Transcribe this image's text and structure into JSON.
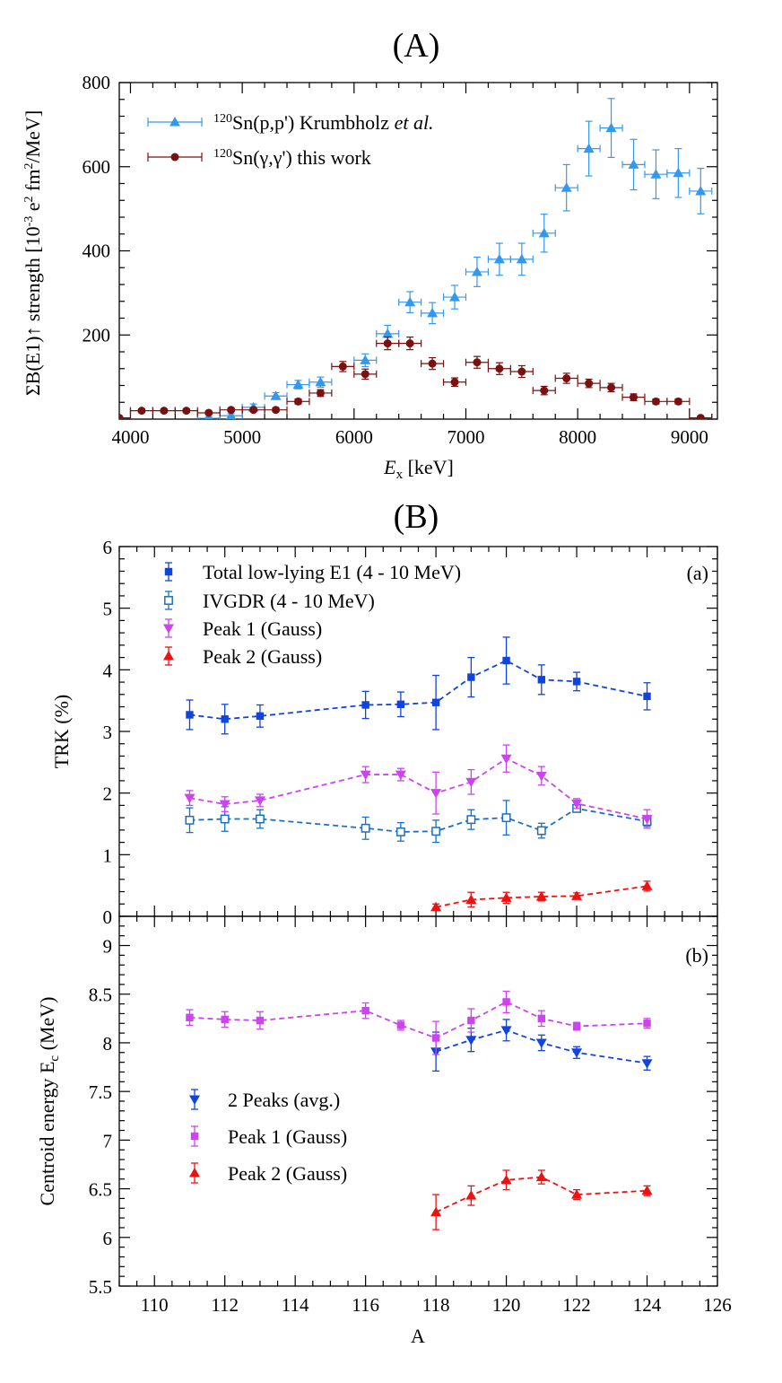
{
  "colors": {
    "light_blue": "#3399ee",
    "dark_red": "#7a1010",
    "blue": "#1144dd",
    "ivgdr_blue": "#1a6fc4",
    "magenta": "#cc44ee",
    "red": "#ee1111"
  },
  "chart_data": [
    {
      "id": "A",
      "type": "scatter",
      "panel_title": "(A)",
      "xlabel_italic": "E",
      "xlabel_sub": "x",
      "xlabel_unit": "[keV]",
      "ylabel_prefix": "ΣB(E1)↑ strength [10",
      "ylabel_exp1": "-3",
      "ylabel_mid": " e",
      "ylabel_exp2": "2",
      "ylabel_mid2": " fm",
      "ylabel_exp3": "2",
      "ylabel_suffix": "/MeV]",
      "xlim": [
        3900,
        9250
      ],
      "ylim": [
        0,
        800
      ],
      "xticks": [
        "4000",
        "5000",
        "6000",
        "7000",
        "8000",
        "9000"
      ],
      "yticks": [
        "200",
        "400",
        "600",
        "800"
      ],
      "legend_placement": "top-left",
      "series": [
        {
          "legend_sup": "120",
          "legend_text": "Sn(p,p') Krumbholz ",
          "legend_italic": "et al.",
          "marker": "triangle-up",
          "color_key": "light_blue",
          "points": [
            {
              "x": 4700,
              "y": 2,
              "ey": 3
            },
            {
              "x": 4900,
              "y": 8,
              "ey": 5
            },
            {
              "x": 5100,
              "y": 28,
              "ey": 8
            },
            {
              "x": 5300,
              "y": 55,
              "ey": 8
            },
            {
              "x": 5500,
              "y": 82,
              "ey": 10
            },
            {
              "x": 5700,
              "y": 88,
              "ey": 12
            },
            {
              "x": 6100,
              "y": 140,
              "ey": 15
            },
            {
              "x": 6300,
              "y": 203,
              "ey": 20
            },
            {
              "x": 6500,
              "y": 278,
              "ey": 25
            },
            {
              "x": 6700,
              "y": 252,
              "ey": 25
            },
            {
              "x": 6900,
              "y": 290,
              "ey": 28
            },
            {
              "x": 7100,
              "y": 350,
              "ey": 35
            },
            {
              "x": 7300,
              "y": 380,
              "ey": 38
            },
            {
              "x": 7500,
              "y": 380,
              "ey": 38
            },
            {
              "x": 7700,
              "y": 442,
              "ey": 45
            },
            {
              "x": 7900,
              "y": 550,
              "ey": 55
            },
            {
              "x": 8100,
              "y": 643,
              "ey": 65
            },
            {
              "x": 8300,
              "y": 692,
              "ey": 70
            },
            {
              "x": 8500,
              "y": 605,
              "ey": 60
            },
            {
              "x": 8700,
              "y": 582,
              "ey": 58
            },
            {
              "x": 8900,
              "y": 585,
              "ey": 58
            },
            {
              "x": 9100,
              "y": 542,
              "ey": 54
            }
          ]
        },
        {
          "legend_sup": "120",
          "legend_text": "Sn(γ,γ') this work",
          "legend_italic": "",
          "marker": "circle",
          "color_key": "dark_red",
          "points": [
            {
              "x": 3900,
              "y": 3,
              "ey": 3
            },
            {
              "x": 4100,
              "y": 20,
              "ey": 4
            },
            {
              "x": 4300,
              "y": 20,
              "ey": 4
            },
            {
              "x": 4500,
              "y": 20,
              "ey": 4
            },
            {
              "x": 4700,
              "y": 15,
              "ey": 4
            },
            {
              "x": 4900,
              "y": 22,
              "ey": 4
            },
            {
              "x": 5100,
              "y": 22,
              "ey": 4
            },
            {
              "x": 5300,
              "y": 22,
              "ey": 4
            },
            {
              "x": 5500,
              "y": 42,
              "ey": 6
            },
            {
              "x": 5700,
              "y": 62,
              "ey": 8
            },
            {
              "x": 5900,
              "y": 125,
              "ey": 12
            },
            {
              "x": 6100,
              "y": 107,
              "ey": 12
            },
            {
              "x": 6300,
              "y": 180,
              "ey": 15
            },
            {
              "x": 6500,
              "y": 180,
              "ey": 15
            },
            {
              "x": 6700,
              "y": 132,
              "ey": 14
            },
            {
              "x": 6900,
              "y": 88,
              "ey": 10
            },
            {
              "x": 7100,
              "y": 135,
              "ey": 14
            },
            {
              "x": 7300,
              "y": 120,
              "ey": 14
            },
            {
              "x": 7500,
              "y": 113,
              "ey": 14
            },
            {
              "x": 7700,
              "y": 68,
              "ey": 10
            },
            {
              "x": 7900,
              "y": 97,
              "ey": 12
            },
            {
              "x": 8100,
              "y": 85,
              "ey": 10
            },
            {
              "x": 8300,
              "y": 75,
              "ey": 10
            },
            {
              "x": 8500,
              "y": 52,
              "ey": 8
            },
            {
              "x": 8700,
              "y": 42,
              "ey": 6
            },
            {
              "x": 8900,
              "y": 42,
              "ey": 6
            },
            {
              "x": 9100,
              "y": 3,
              "ey": 3
            }
          ]
        }
      ]
    },
    {
      "id": "Ba",
      "type": "scatter",
      "panel_title": "(B)",
      "panel_label": "(a)",
      "ylabel": "TRK (%)",
      "xlim": [
        109,
        126
      ],
      "ylim": [
        0,
        6
      ],
      "yticks": [
        "0",
        "1",
        "2",
        "3",
        "4",
        "5",
        "6"
      ],
      "legend_placement": "top-left",
      "series": [
        {
          "name": "Total low-lying E1 (4 - 10 MeV)",
          "marker": "square-filled",
          "color_key": "blue",
          "dashed": true,
          "points": [
            {
              "x": 111,
              "y": 3.27,
              "ey": 0.24
            },
            {
              "x": 112,
              "y": 3.2,
              "ey": 0.24
            },
            {
              "x": 113,
              "y": 3.25,
              "ey": 0.18
            },
            {
              "x": 116,
              "y": 3.43,
              "ey": 0.22
            },
            {
              "x": 117,
              "y": 3.44,
              "ey": 0.2
            },
            {
              "x": 118,
              "y": 3.47,
              "ey": 0.44
            },
            {
              "x": 119,
              "y": 3.88,
              "ey": 0.32
            },
            {
              "x": 120,
              "y": 4.15,
              "ey": 0.38
            },
            {
              "x": 121,
              "y": 3.84,
              "ey": 0.24
            },
            {
              "x": 122,
              "y": 3.81,
              "ey": 0.15
            },
            {
              "x": 124,
              "y": 3.57,
              "ey": 0.22
            }
          ]
        },
        {
          "name": "IVGDR (4 - 10 MeV)",
          "marker": "square-open",
          "color_key": "ivgdr_blue",
          "dashed": true,
          "points": [
            {
              "x": 111,
              "y": 1.56,
              "ey": 0.2
            },
            {
              "x": 112,
              "y": 1.58,
              "ey": 0.2
            },
            {
              "x": 113,
              "y": 1.58,
              "ey": 0.15
            },
            {
              "x": 116,
              "y": 1.43,
              "ey": 0.18
            },
            {
              "x": 117,
              "y": 1.37,
              "ey": 0.15
            },
            {
              "x": 118,
              "y": 1.38,
              "ey": 0.18
            },
            {
              "x": 119,
              "y": 1.57,
              "ey": 0.16
            },
            {
              "x": 120,
              "y": 1.6,
              "ey": 0.28
            },
            {
              "x": 121,
              "y": 1.39,
              "ey": 0.12
            },
            {
              "x": 122,
              "y": 1.75,
              "ey": 0.05
            },
            {
              "x": 124,
              "y": 1.54,
              "ey": 0.08
            }
          ]
        },
        {
          "name": "Peak 1 (Gauss)",
          "marker": "triangle-down",
          "color_key": "magenta",
          "dashed": true,
          "points": [
            {
              "x": 111,
              "y": 1.92,
              "ey": 0.12
            },
            {
              "x": 112,
              "y": 1.82,
              "ey": 0.12
            },
            {
              "x": 113,
              "y": 1.88,
              "ey": 0.1
            },
            {
              "x": 116,
              "y": 2.3,
              "ey": 0.13
            },
            {
              "x": 117,
              "y": 2.3,
              "ey": 0.1
            },
            {
              "x": 118,
              "y": 2.0,
              "ey": 0.34
            },
            {
              "x": 119,
              "y": 2.18,
              "ey": 0.2
            },
            {
              "x": 120,
              "y": 2.56,
              "ey": 0.22
            },
            {
              "x": 121,
              "y": 2.28,
              "ey": 0.15
            },
            {
              "x": 122,
              "y": 1.83,
              "ey": 0.08
            },
            {
              "x": 124,
              "y": 1.58,
              "ey": 0.15
            }
          ]
        },
        {
          "name": "Peak 2 (Gauss)",
          "marker": "triangle-up",
          "color_key": "red",
          "dashed": true,
          "points": [
            {
              "x": 118,
              "y": 0.15,
              "ey": 0.05
            },
            {
              "x": 119,
              "y": 0.27,
              "ey": 0.12
            },
            {
              "x": 120,
              "y": 0.3,
              "ey": 0.09
            },
            {
              "x": 121,
              "y": 0.32,
              "ey": 0.07
            },
            {
              "x": 122,
              "y": 0.33,
              "ey": 0.05
            },
            {
              "x": 124,
              "y": 0.49,
              "ey": 0.08
            }
          ]
        }
      ]
    },
    {
      "id": "Bb",
      "type": "scatter",
      "panel_label": "(b)",
      "ylabel": "Centroid energy E",
      "ylabel_sub": "c",
      "ylabel_unit": " (MeV)",
      "xlabel": "A",
      "xlim": [
        109,
        126
      ],
      "ylim": [
        5.5,
        9.3
      ],
      "xticks": [
        "110",
        "112",
        "114",
        "116",
        "118",
        "120",
        "122",
        "124",
        "126"
      ],
      "yticks": [
        "5.5",
        "6",
        "6.5",
        "7",
        "7.5",
        "8",
        "8.5",
        "9"
      ],
      "legend_placement": "center-left",
      "series": [
        {
          "name": "2 Peaks (avg.)",
          "marker": "triangle-down",
          "color_key": "blue",
          "dashed": true,
          "points": [
            {
              "x": 118,
              "y": 7.91,
              "ey": 0.2
            },
            {
              "x": 119,
              "y": 8.03,
              "ey": 0.12
            },
            {
              "x": 120,
              "y": 8.13,
              "ey": 0.11
            },
            {
              "x": 121,
              "y": 8.0,
              "ey": 0.08
            },
            {
              "x": 122,
              "y": 7.9,
              "ey": 0.06
            },
            {
              "x": 124,
              "y": 7.79,
              "ey": 0.07
            }
          ]
        },
        {
          "name": "Peak 1 (Gauss)",
          "marker": "square-filled",
          "color_key": "magenta",
          "dashed": true,
          "points": [
            {
              "x": 111,
              "y": 8.26,
              "ey": 0.08
            },
            {
              "x": 112,
              "y": 8.24,
              "ey": 0.08
            },
            {
              "x": 113,
              "y": 8.23,
              "ey": 0.09
            },
            {
              "x": 116,
              "y": 8.33,
              "ey": 0.08
            },
            {
              "x": 117,
              "y": 8.18,
              "ey": 0.05
            },
            {
              "x": 118,
              "y": 8.05,
              "ey": 0.17
            },
            {
              "x": 119,
              "y": 8.23,
              "ey": 0.12
            },
            {
              "x": 120,
              "y": 8.42,
              "ey": 0.11
            },
            {
              "x": 121,
              "y": 8.25,
              "ey": 0.08
            },
            {
              "x": 122,
              "y": 8.17,
              "ey": 0.04
            },
            {
              "x": 124,
              "y": 8.2,
              "ey": 0.05
            }
          ]
        },
        {
          "name": "Peak 2 (Gauss)",
          "marker": "triangle-up",
          "color_key": "red",
          "dashed": true,
          "points": [
            {
              "x": 118,
              "y": 6.26,
              "ey": 0.18
            },
            {
              "x": 119,
              "y": 6.43,
              "ey": 0.1
            },
            {
              "x": 120,
              "y": 6.59,
              "ey": 0.1
            },
            {
              "x": 121,
              "y": 6.62,
              "ey": 0.07
            },
            {
              "x": 122,
              "y": 6.44,
              "ey": 0.05
            },
            {
              "x": 124,
              "y": 6.48,
              "ey": 0.05
            }
          ]
        }
      ]
    }
  ]
}
